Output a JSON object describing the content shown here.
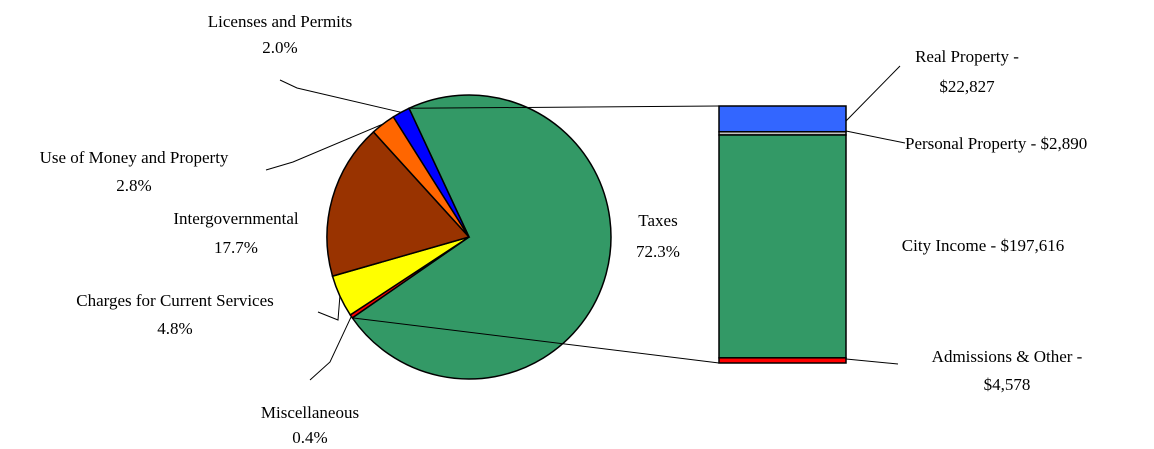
{
  "chart_data": [
    {
      "type": "pie",
      "title": "",
      "slices": [
        {
          "name": "Taxes",
          "value": 72.3,
          "label": "72.3%",
          "color": "#339966"
        },
        {
          "name": "Miscellaneous",
          "value": 0.4,
          "label": "0.4%",
          "color": "#ff0000"
        },
        {
          "name": "Charges for Current Services",
          "value": 4.8,
          "label": "4.8%",
          "color": "#ffff00"
        },
        {
          "name": "Intergovernmental",
          "value": 17.7,
          "label": "17.7%",
          "color": "#993300"
        },
        {
          "name": "Use of Money and Property",
          "value": 2.8,
          "label": "2.8%",
          "color": "#ff6600"
        },
        {
          "name": "Licenses and Permits",
          "value": 2.0,
          "label": "2.0%",
          "color": "#0000ff"
        }
      ]
    },
    {
      "type": "bar",
      "stacked": true,
      "title": "",
      "segments": [
        {
          "name": "Real Property - $22,827",
          "value": 22827,
          "color": "#3366ff"
        },
        {
          "name": "Personal Property - $2,890",
          "value": 2890,
          "color": "#c0c0c0"
        },
        {
          "name": "City Income - $197,616",
          "value": 197616,
          "color": "#339966"
        },
        {
          "name": "Admissions & Other - $4,578",
          "value": 4578,
          "color": "#ff0000"
        }
      ]
    }
  ]
}
